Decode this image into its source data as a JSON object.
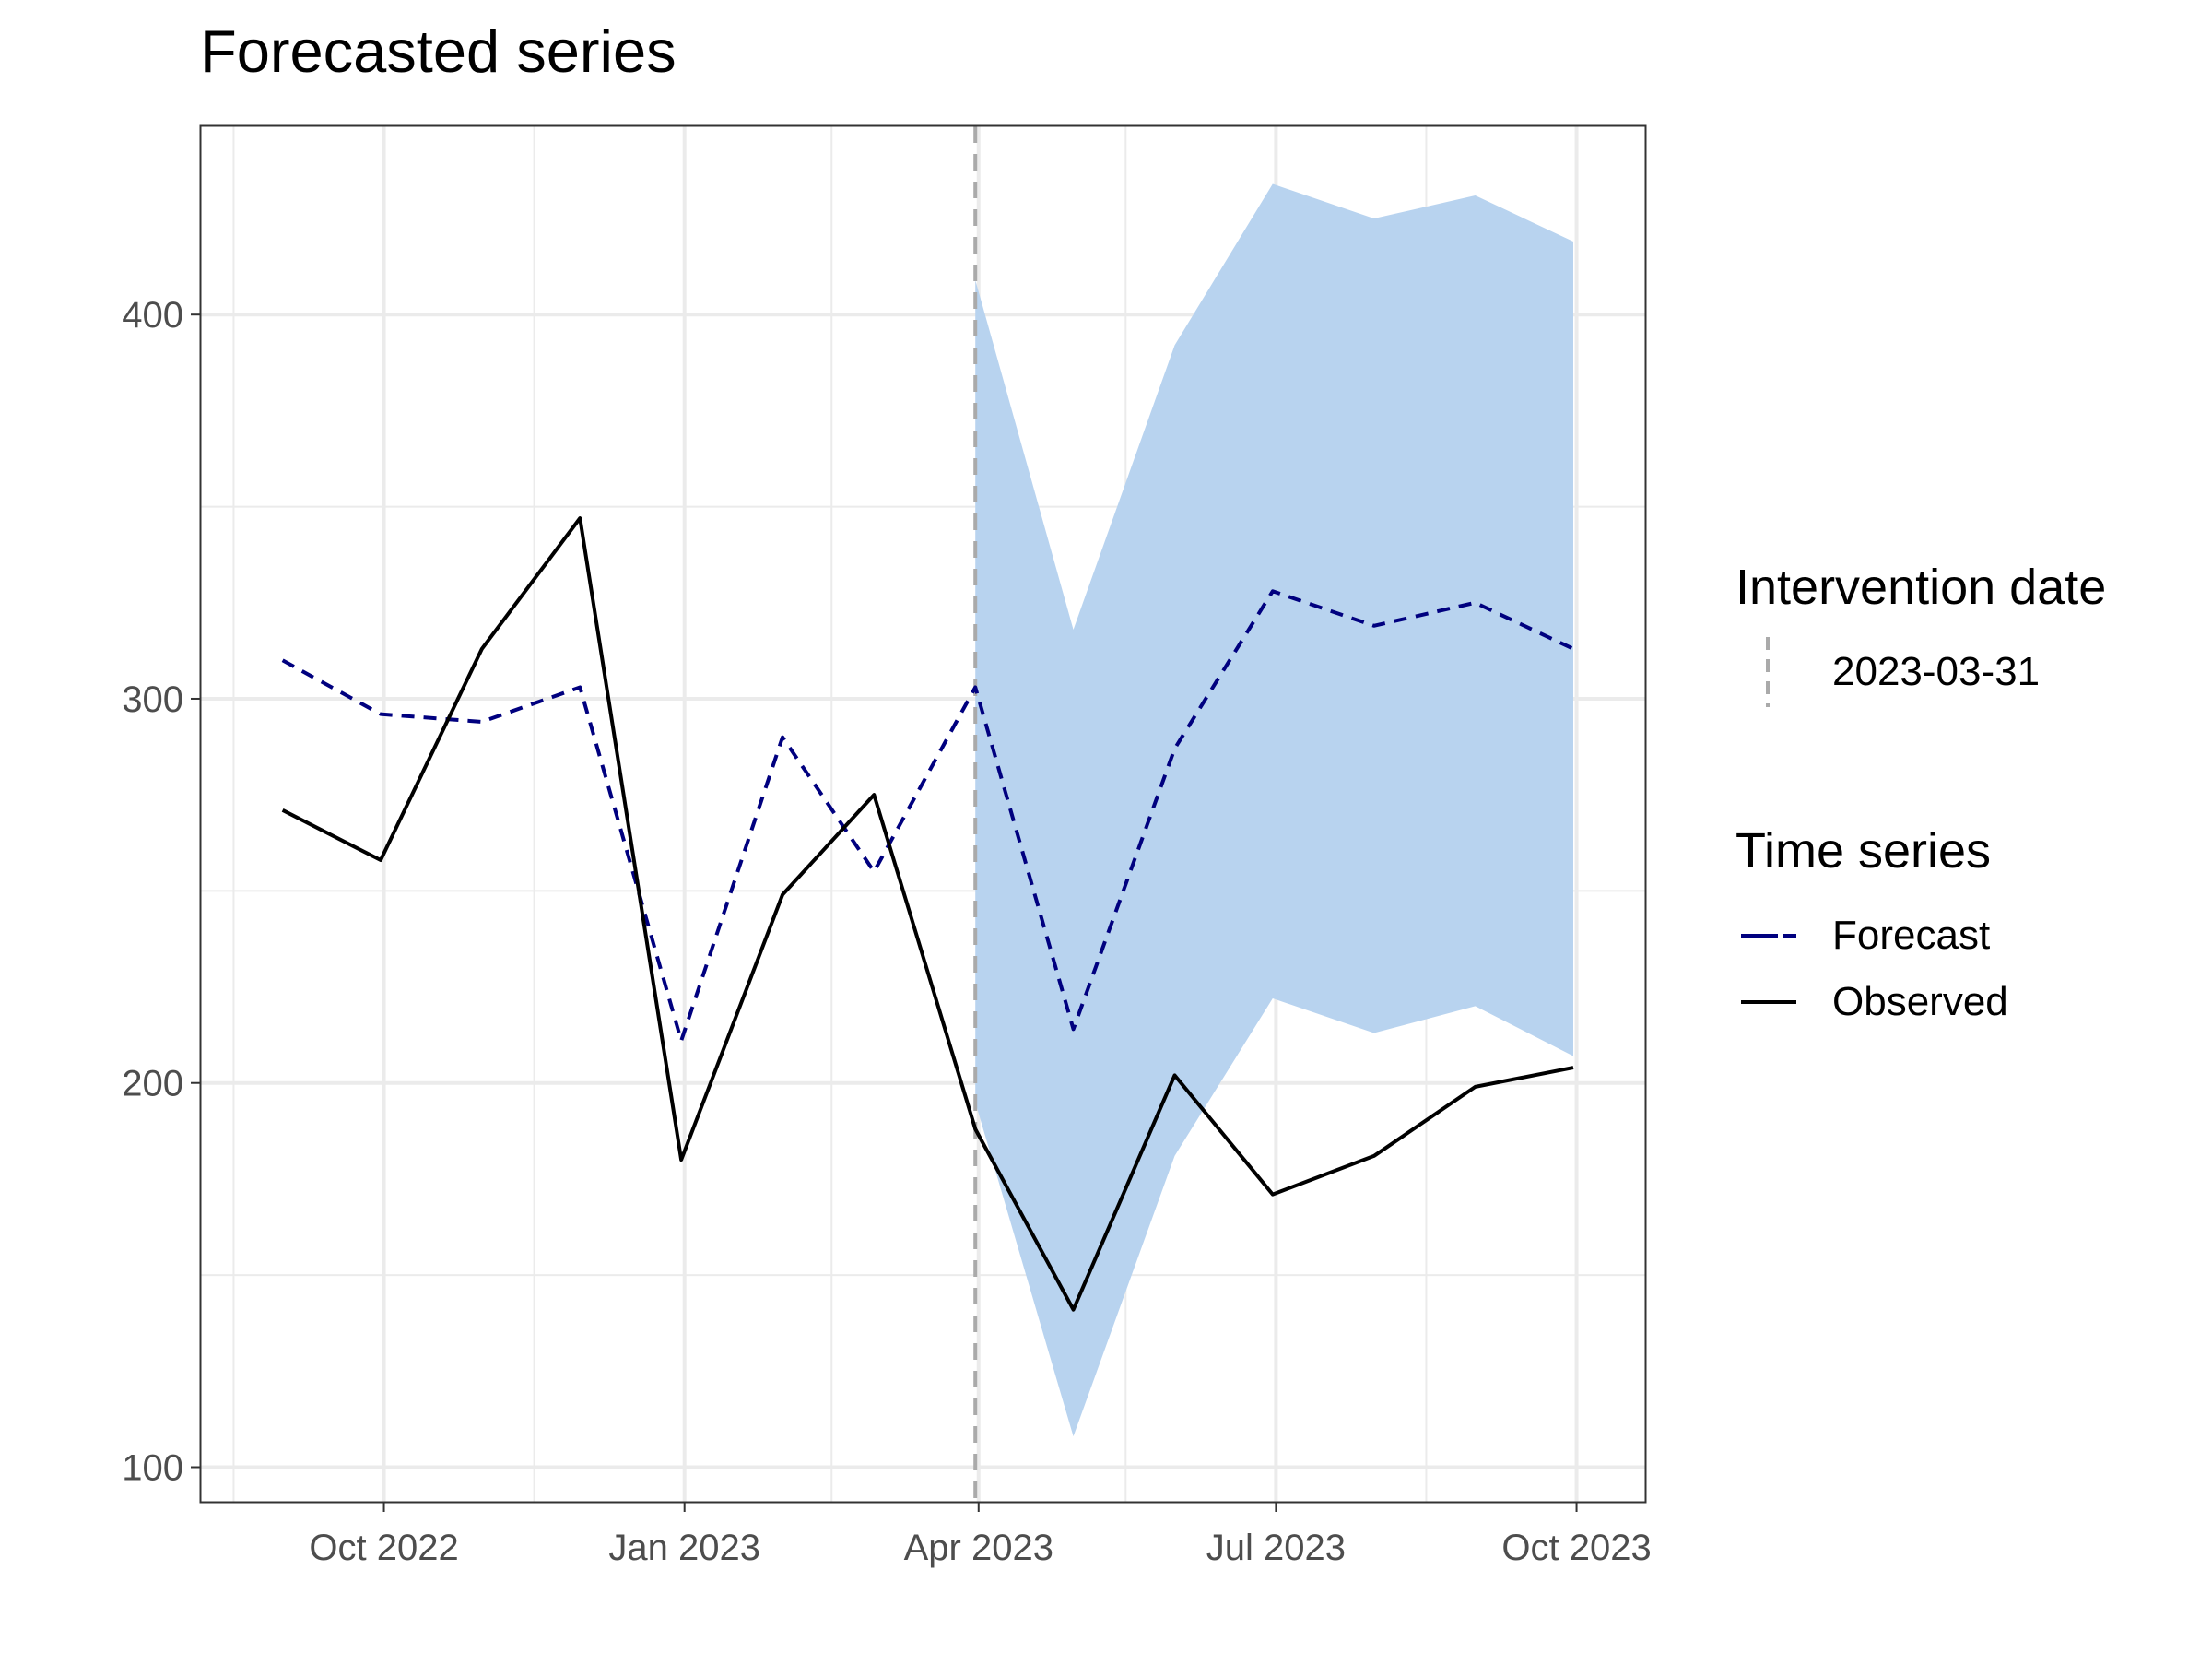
{
  "chart_data": {
    "type": "line",
    "title": "Forecasted series",
    "xlabel": "",
    "ylabel": "",
    "x_axis_type": "date",
    "xlim": [
      "2022-08-06",
      "2023-10-22"
    ],
    "ylim": [
      91,
      449
    ],
    "x_ticks": [
      {
        "date": "2022-10-01",
        "label": "Oct 2022"
      },
      {
        "date": "2023-01-01",
        "label": "Jan 2023"
      },
      {
        "date": "2023-04-01",
        "label": "Apr 2023"
      },
      {
        "date": "2023-07-01",
        "label": "Jul 2023"
      },
      {
        "date": "2023-10-01",
        "label": "Oct 2023"
      }
    ],
    "x_minor_ticks": [
      "2022-08-16",
      "2022-11-16",
      "2023-02-15",
      "2023-05-16",
      "2023-08-16"
    ],
    "y_ticks": [
      100,
      200,
      300,
      400
    ],
    "y_minor_ticks": [
      150,
      250,
      350
    ],
    "grid": true,
    "legend_position": "right",
    "dates": [
      "2022-08-31",
      "2022-09-30",
      "2022-10-31",
      "2022-11-30",
      "2022-12-31",
      "2023-01-31",
      "2023-02-28",
      "2023-03-31",
      "2023-04-30",
      "2023-05-31",
      "2023-06-30",
      "2023-07-31",
      "2023-08-31",
      "2023-09-30"
    ],
    "series": [
      {
        "name": "Observed",
        "color": "#000000",
        "linetype": "solid",
        "values": [
          271,
          258,
          313,
          347,
          180,
          249,
          275,
          188,
          141,
          202,
          171,
          181,
          199,
          204
        ]
      },
      {
        "name": "Forecast",
        "color": "#00007f",
        "linetype": "dashed",
        "values": [
          310,
          296,
          294,
          303,
          211,
          290,
          255,
          303,
          214,
          287,
          328,
          319,
          325,
          313
        ]
      }
    ],
    "ribbon": {
      "color": "#b8d3ef",
      "dates": [
        "2023-03-31",
        "2023-04-30",
        "2023-05-31",
        "2023-06-30",
        "2023-07-31",
        "2023-08-31",
        "2023-09-30"
      ],
      "lower": [
        195,
        108,
        181,
        222,
        213,
        220,
        207
      ],
      "upper": [
        409,
        318,
        392,
        434,
        425,
        431,
        419
      ]
    },
    "vline": {
      "date": "2023-03-31",
      "color": "#aaaaaa",
      "linetype": "dashed"
    },
    "legend": [
      {
        "title": "Intervention date",
        "entries": [
          {
            "label": "2023-03-31",
            "color": "#aaaaaa",
            "linetype": "dashed",
            "orientation": "vertical"
          }
        ]
      },
      {
        "title": "Time series",
        "entries": [
          {
            "label": "Forecast",
            "color": "#00007f",
            "linetype": "dashed",
            "orientation": "horizontal"
          },
          {
            "label": "Observed",
            "color": "#000000",
            "linetype": "solid",
            "orientation": "horizontal"
          }
        ]
      }
    ]
  }
}
